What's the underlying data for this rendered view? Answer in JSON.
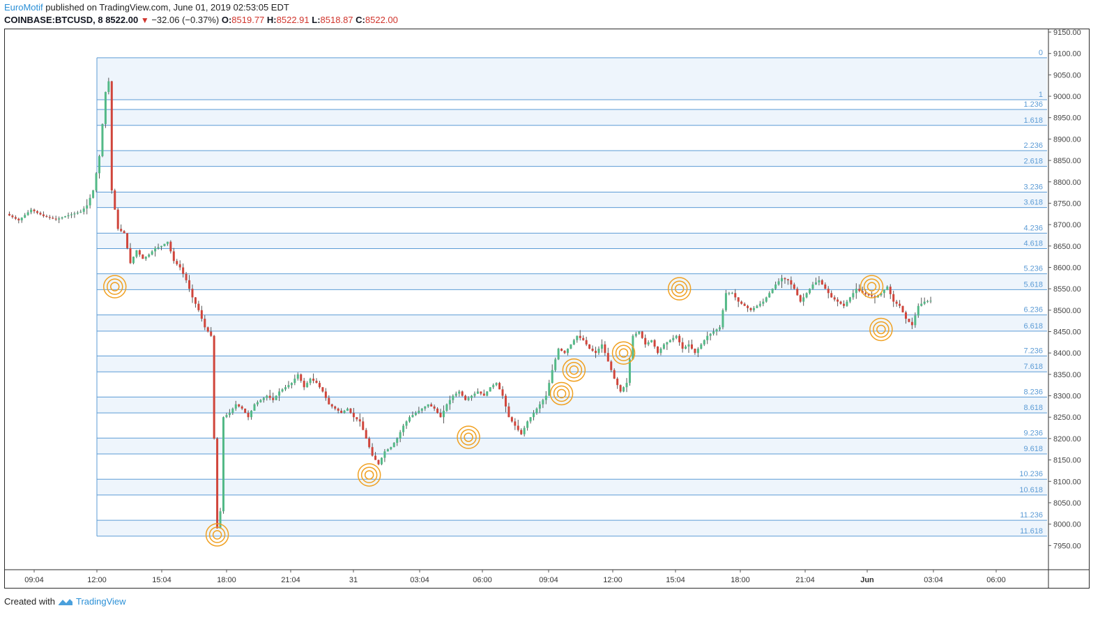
{
  "header": {
    "author": "EuroMotif",
    "published": " published on TradingView.com, June 01, 2019 02:53:05 EDT",
    "symbol": "COINBASE:BTCUSD, 8",
    "last": "8522.00",
    "change": "−32.06 (−0.37%)",
    "o_label": "O:",
    "o_val": "8519.77",
    "h_label": "H:",
    "h_val": "8522.91",
    "l_label": "L:",
    "l_val": "8518.87",
    "c_label": "C:",
    "c_val": "8522.00"
  },
  "footer": {
    "created_with": "Created with",
    "brand": "TradingView"
  },
  "colors": {
    "up": "#53b987",
    "down": "#d0453b",
    "fib_line": "#5b9bd5",
    "fib_fill": "#eef5fc",
    "marker": "#f0a020"
  },
  "chart_data": {
    "type": "candlestick",
    "ylim": [
      7900,
      9150
    ],
    "price_ticks": [
      "9150.00",
      "9100.00",
      "9050.00",
      "9000.00",
      "8950.00",
      "8900.00",
      "8850.00",
      "8800.00",
      "8750.00",
      "8700.00",
      "8650.00",
      "8600.00",
      "8550.00",
      "8500.00",
      "8450.00",
      "8400.00",
      "8350.00",
      "8300.00",
      "8250.00",
      "8200.00",
      "8150.00",
      "8100.00",
      "8050.00",
      "8000.00",
      "7950.00"
    ],
    "time_ticks": [
      "09:04",
      "12:00",
      "15:04",
      "18:00",
      "21:04",
      "31",
      "03:04",
      "06:00",
      "09:04",
      "12:00",
      "15:04",
      "18:00",
      "21:04",
      "Jun",
      "03:04",
      "06:00"
    ],
    "fib_levels": [
      {
        "label": "0",
        "price": 9090
      },
      {
        "label": "1",
        "price": 8992
      },
      {
        "label": "1.236",
        "price": 8969
      },
      {
        "label": "1.618",
        "price": 8932
      },
      {
        "label": "2.236",
        "price": 8873
      },
      {
        "label": "2.618",
        "price": 8836
      },
      {
        "label": "3.236",
        "price": 8776
      },
      {
        "label": "3.618",
        "price": 8740
      },
      {
        "label": "4.236",
        "price": 8680
      },
      {
        "label": "4.618",
        "price": 8644
      },
      {
        "label": "5.236",
        "price": 8585
      },
      {
        "label": "5.618",
        "price": 8548
      },
      {
        "label": "6.236",
        "price": 8489
      },
      {
        "label": "6.618",
        "price": 8451
      },
      {
        "label": "7.236",
        "price": 8393
      },
      {
        "label": "7.618",
        "price": 8356
      },
      {
        "label": "8.236",
        "price": 8297
      },
      {
        "label": "8.618",
        "price": 8260
      },
      {
        "label": "9.236",
        "price": 8201
      },
      {
        "label": "9.618",
        "price": 8164
      },
      {
        "label": "10.236",
        "price": 8105
      },
      {
        "label": "10.618",
        "price": 8068
      },
      {
        "label": "11.236",
        "price": 8009
      },
      {
        "label": "11.618",
        "price": 7972
      }
    ],
    "close_path": [
      [
        0,
        8725
      ],
      [
        4,
        8710
      ],
      [
        8,
        8735
      ],
      [
        12,
        8720
      ],
      [
        16,
        8712
      ],
      [
        20,
        8722
      ],
      [
        24,
        8730
      ],
      [
        26,
        8745
      ],
      [
        28,
        8780
      ],
      [
        30,
        8860
      ],
      [
        32,
        9010
      ],
      [
        33,
        9035
      ],
      [
        34,
        8780
      ],
      [
        36,
        8690
      ],
      [
        38,
        8680
      ],
      [
        40,
        8610
      ],
      [
        42,
        8640
      ],
      [
        44,
        8620
      ],
      [
        46,
        8630
      ],
      [
        48,
        8645
      ],
      [
        50,
        8650
      ],
      [
        52,
        8660
      ],
      [
        54,
        8615
      ],
      [
        56,
        8600
      ],
      [
        58,
        8570
      ],
      [
        60,
        8530
      ],
      [
        62,
        8500
      ],
      [
        64,
        8460
      ],
      [
        66,
        8440
      ],
      [
        67,
        8200
      ],
      [
        68,
        7990
      ],
      [
        69,
        8030
      ],
      [
        70,
        8250
      ],
      [
        72,
        8260
      ],
      [
        74,
        8280
      ],
      [
        76,
        8270
      ],
      [
        78,
        8250
      ],
      [
        80,
        8280
      ],
      [
        82,
        8290
      ],
      [
        84,
        8300
      ],
      [
        86,
        8290
      ],
      [
        88,
        8310
      ],
      [
        90,
        8320
      ],
      [
        92,
        8330
      ],
      [
        94,
        8350
      ],
      [
        96,
        8320
      ],
      [
        98,
        8340
      ],
      [
        100,
        8330
      ],
      [
        102,
        8310
      ],
      [
        104,
        8280
      ],
      [
        106,
        8270
      ],
      [
        108,
        8260
      ],
      [
        110,
        8270
      ],
      [
        112,
        8250
      ],
      [
        114,
        8240
      ],
      [
        116,
        8200
      ],
      [
        118,
        8160
      ],
      [
        120,
        8140
      ],
      [
        122,
        8170
      ],
      [
        124,
        8180
      ],
      [
        126,
        8200
      ],
      [
        128,
        8230
      ],
      [
        130,
        8250
      ],
      [
        132,
        8260
      ],
      [
        134,
        8270
      ],
      [
        136,
        8280
      ],
      [
        138,
        8270
      ],
      [
        140,
        8250
      ],
      [
        142,
        8280
      ],
      [
        144,
        8300
      ],
      [
        146,
        8310
      ],
      [
        148,
        8290
      ],
      [
        150,
        8300
      ],
      [
        152,
        8310
      ],
      [
        154,
        8300
      ],
      [
        156,
        8320
      ],
      [
        158,
        8330
      ],
      [
        160,
        8300
      ],
      [
        162,
        8250
      ],
      [
        164,
        8230
      ],
      [
        166,
        8210
      ],
      [
        168,
        8240
      ],
      [
        170,
        8260
      ],
      [
        172,
        8280
      ],
      [
        174,
        8300
      ],
      [
        176,
        8360
      ],
      [
        178,
        8410
      ],
      [
        180,
        8400
      ],
      [
        182,
        8420
      ],
      [
        184,
        8440
      ],
      [
        186,
        8430
      ],
      [
        188,
        8410
      ],
      [
        190,
        8400
      ],
      [
        192,
        8420
      ],
      [
        194,
        8380
      ],
      [
        196,
        8340
      ],
      [
        198,
        8310
      ],
      [
        200,
        8330
      ],
      [
        202,
        8440
      ],
      [
        204,
        8450
      ],
      [
        206,
        8420
      ],
      [
        208,
        8430
      ],
      [
        210,
        8400
      ],
      [
        212,
        8420
      ],
      [
        214,
        8430
      ],
      [
        216,
        8440
      ],
      [
        218,
        8410
      ],
      [
        220,
        8420
      ],
      [
        222,
        8400
      ],
      [
        224,
        8420
      ],
      [
        226,
        8440
      ],
      [
        228,
        8450
      ],
      [
        230,
        8460
      ],
      [
        232,
        8540
      ],
      [
        234,
        8540
      ],
      [
        236,
        8520
      ],
      [
        238,
        8510
      ],
      [
        240,
        8500
      ],
      [
        242,
        8510
      ],
      [
        244,
        8520
      ],
      [
        246,
        8540
      ],
      [
        248,
        8560
      ],
      [
        250,
        8575
      ],
      [
        252,
        8570
      ],
      [
        254,
        8550
      ],
      [
        256,
        8520
      ],
      [
        258,
        8540
      ],
      [
        260,
        8560
      ],
      [
        262,
        8570
      ],
      [
        264,
        8550
      ],
      [
        266,
        8530
      ],
      [
        268,
        8520
      ],
      [
        270,
        8510
      ],
      [
        272,
        8530
      ],
      [
        274,
        8550
      ],
      [
        276,
        8540
      ],
      [
        278,
        8535
      ],
      [
        280,
        8530
      ],
      [
        282,
        8540
      ],
      [
        284,
        8555
      ],
      [
        286,
        8520
      ],
      [
        288,
        8510
      ],
      [
        290,
        8480
      ],
      [
        292,
        8465
      ],
      [
        294,
        8510
      ],
      [
        296,
        8520
      ],
      [
        298,
        8522
      ]
    ],
    "markers": [
      [
        35,
        8555
      ],
      [
        68,
        7975
      ],
      [
        117,
        8115
      ],
      [
        149,
        8203
      ],
      [
        179,
        8305
      ],
      [
        183,
        8360
      ],
      [
        199,
        8400
      ],
      [
        217,
        8550
      ],
      [
        279,
        8555
      ],
      [
        282,
        8455
      ]
    ]
  }
}
